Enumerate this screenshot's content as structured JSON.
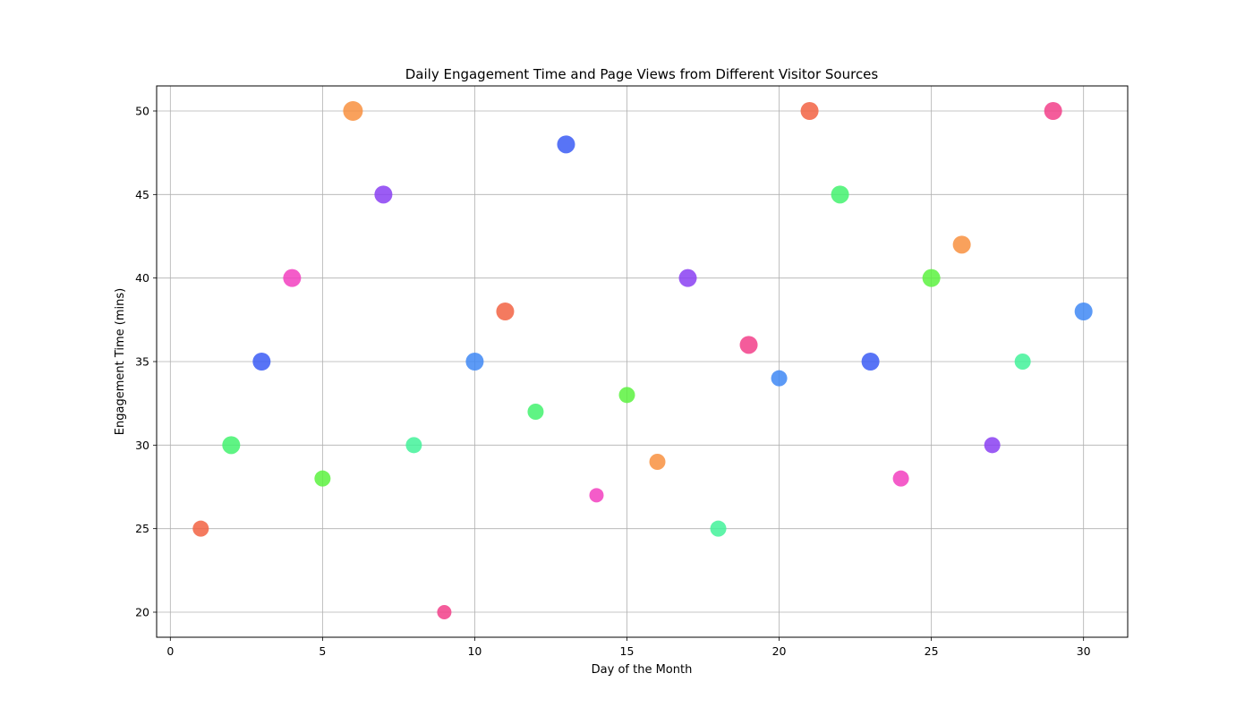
{
  "chart_data": {
    "type": "scatter",
    "title": "Daily Engagement Time and Page Views from Different Visitor Sources",
    "xlabel": "Day of the Month",
    "ylabel": "Engagement Time (mins)",
    "xlim": [
      -0.45,
      31.45
    ],
    "ylim": [
      18.5,
      51.5
    ],
    "xticks": [
      0,
      5,
      10,
      15,
      20,
      25,
      30
    ],
    "yticks": [
      20,
      25,
      30,
      35,
      40,
      45,
      50
    ],
    "grid": true,
    "legend": "none",
    "points": [
      {
        "x": 1,
        "y": 25,
        "color": "#f26343",
        "size": 9
      },
      {
        "x": 2,
        "y": 30,
        "color": "#43f26e",
        "size": 10
      },
      {
        "x": 3,
        "y": 35,
        "color": "#3b5cf4",
        "size": 10
      },
      {
        "x": 4,
        "y": 40,
        "color": "#f23fbf",
        "size": 10
      },
      {
        "x": 5,
        "y": 28,
        "color": "#5cf23f",
        "size": 9
      },
      {
        "x": 6,
        "y": 50,
        "color": "#f89040",
        "size": 11
      },
      {
        "x": 7,
        "y": 45,
        "color": "#8a3ff2",
        "size": 10
      },
      {
        "x": 8,
        "y": 30,
        "color": "#43f29a",
        "size": 9
      },
      {
        "x": 9,
        "y": 20,
        "color": "#f23f8a",
        "size": 8
      },
      {
        "x": 10,
        "y": 35,
        "color": "#4088f4",
        "size": 10
      },
      {
        "x": 11,
        "y": 38,
        "color": "#f26343",
        "size": 10
      },
      {
        "x": 12,
        "y": 32,
        "color": "#43f26e",
        "size": 9
      },
      {
        "x": 13,
        "y": 48,
        "color": "#3b5cf4",
        "size": 10
      },
      {
        "x": 14,
        "y": 27,
        "color": "#f23fbf",
        "size": 8
      },
      {
        "x": 15,
        "y": 33,
        "color": "#5cf23f",
        "size": 9
      },
      {
        "x": 16,
        "y": 29,
        "color": "#f89040",
        "size": 9
      },
      {
        "x": 17,
        "y": 40,
        "color": "#8a3ff2",
        "size": 10
      },
      {
        "x": 18,
        "y": 25,
        "color": "#43f29a",
        "size": 9
      },
      {
        "x": 19,
        "y": 36,
        "color": "#f23f8a",
        "size": 10
      },
      {
        "x": 20,
        "y": 34,
        "color": "#4088f4",
        "size": 9
      },
      {
        "x": 21,
        "y": 50,
        "color": "#f26343",
        "size": 10
      },
      {
        "x": 22,
        "y": 45,
        "color": "#43f26e",
        "size": 10
      },
      {
        "x": 23,
        "y": 35,
        "color": "#3b5cf4",
        "size": 10
      },
      {
        "x": 24,
        "y": 28,
        "color": "#f23fbf",
        "size": 9
      },
      {
        "x": 25,
        "y": 40,
        "color": "#5cf23f",
        "size": 10
      },
      {
        "x": 26,
        "y": 42,
        "color": "#f89040",
        "size": 10
      },
      {
        "x": 27,
        "y": 30,
        "color": "#8a3ff2",
        "size": 9
      },
      {
        "x": 28,
        "y": 35,
        "color": "#43f29a",
        "size": 9
      },
      {
        "x": 29,
        "y": 50,
        "color": "#f23f8a",
        "size": 10
      },
      {
        "x": 30,
        "y": 38,
        "color": "#4088f4",
        "size": 10
      }
    ]
  }
}
